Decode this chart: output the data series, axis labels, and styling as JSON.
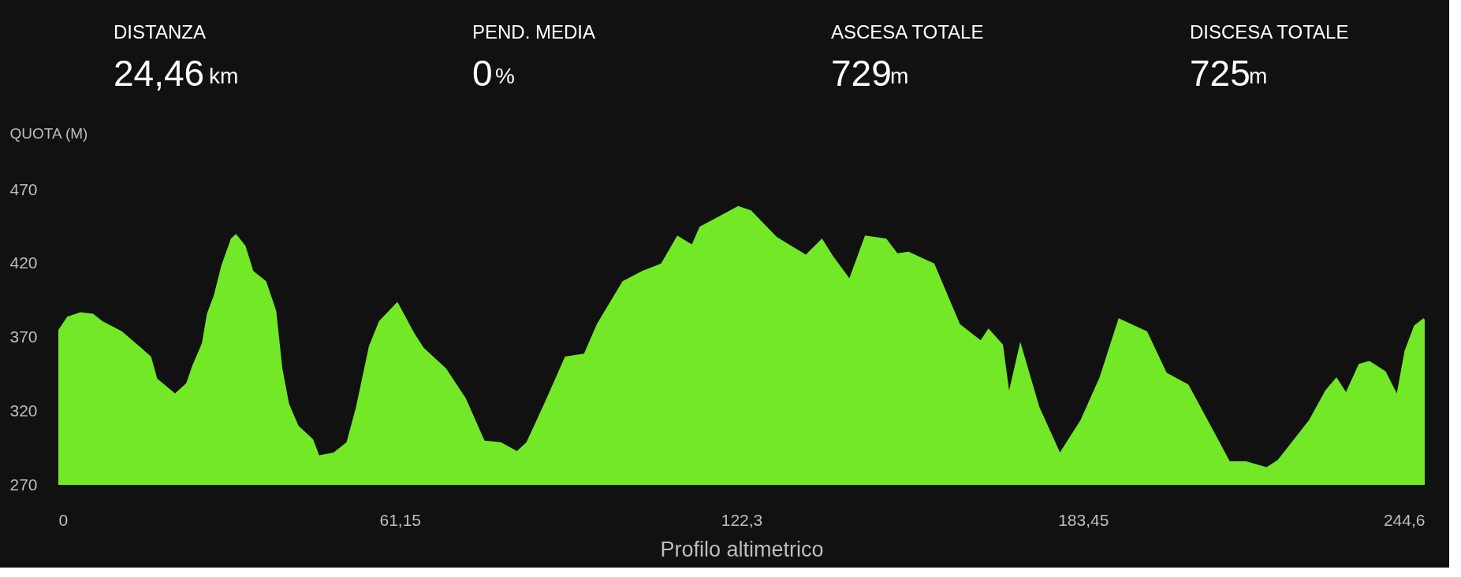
{
  "chart_data": {
    "type": "area",
    "annotations": [
      "DISTANZA",
      "24,46",
      "km",
      "PEND. MEDIA",
      "0",
      "%",
      "ASCESA TOTALE",
      "729",
      "m",
      "DISCESA TOTALE",
      "725",
      "m"
    ],
    "ylabel": "QUOTA (M)",
    "xlabel": "Profilo altimetrico",
    "x": [
      0,
      1.6,
      3.9,
      6.2,
      7.9,
      11.4,
      14.8,
      16.6,
      17.7,
      20.9,
      22.9,
      24.0,
      25.7,
      26.6,
      27.8,
      29.2,
      30.9,
      31.8,
      33.5,
      34.9,
      37.2,
      39.0,
      40.1,
      41.3,
      43.0,
      45.6,
      46.7,
      49.3,
      51.6,
      53.3,
      55.6,
      57.4,
      60.7,
      63.7,
      65.4,
      69.4,
      72.9,
      76.3,
      79.2,
      82.1,
      83.8,
      87.2,
      90.7,
      94.1,
      96.4,
      101.0,
      104.5,
      107.9,
      110.8,
      113.4,
      114.8,
      121.7,
      124.0,
      128.6,
      133.8,
      136.7,
      138.7,
      141.6,
      144.4,
      148.2,
      150.2,
      152.2,
      156.8,
      161.4,
      165.1,
      166.5,
      169.1,
      170.2,
      172.2,
      175.6,
      179.3,
      183.0,
      186.4,
      189.8,
      194.9,
      198.4,
      202.3,
      206.3,
      209.7,
      212.6,
      216.3,
      218.3,
      223.9,
      226.8,
      228.8,
      230.5,
      232.8,
      234.7,
      237.6,
      239.6,
      241.0,
      242.7,
      244.4,
      244.6
    ],
    "series": [
      {
        "color": "#72e826",
        "values": [
          375,
          384,
          387,
          386,
          381,
          374,
          363,
          357,
          342,
          332,
          339,
          351,
          366,
          386,
          398,
          419,
          437,
          440,
          432,
          415,
          408,
          388,
          349,
          325,
          310,
          301,
          290,
          292,
          299,
          323,
          364,
          381,
          394,
          373,
          363,
          349,
          329,
          300,
          299,
          293,
          299,
          327,
          357,
          359,
          379,
          408,
          415,
          420,
          439,
          433,
          445,
          459,
          456,
          438,
          426,
          437,
          425,
          410,
          439,
          437,
          427,
          428,
          420,
          379,
          368,
          376,
          365,
          334,
          367,
          323,
          292,
          314,
          343,
          383,
          374,
          346,
          338,
          310,
          286,
          286,
          282,
          287,
          314,
          334,
          343,
          333,
          352,
          354,
          347,
          332,
          361,
          378,
          383,
          382
        ]
      }
    ],
    "xlim": [
      0,
      244.6
    ],
    "xticks": [
      0,
      {
        "value": 61.15,
        "label": "61,15"
      },
      {
        "value": 122.3,
        "label": "122,3"
      },
      {
        "value": 183.45,
        "label": "183,45"
      },
      {
        "value": 244.6,
        "label": "244,6"
      }
    ],
    "ylim": [
      270,
      470
    ],
    "yticks": [
      270,
      320,
      370,
      420,
      470
    ],
    "grid": false
  }
}
